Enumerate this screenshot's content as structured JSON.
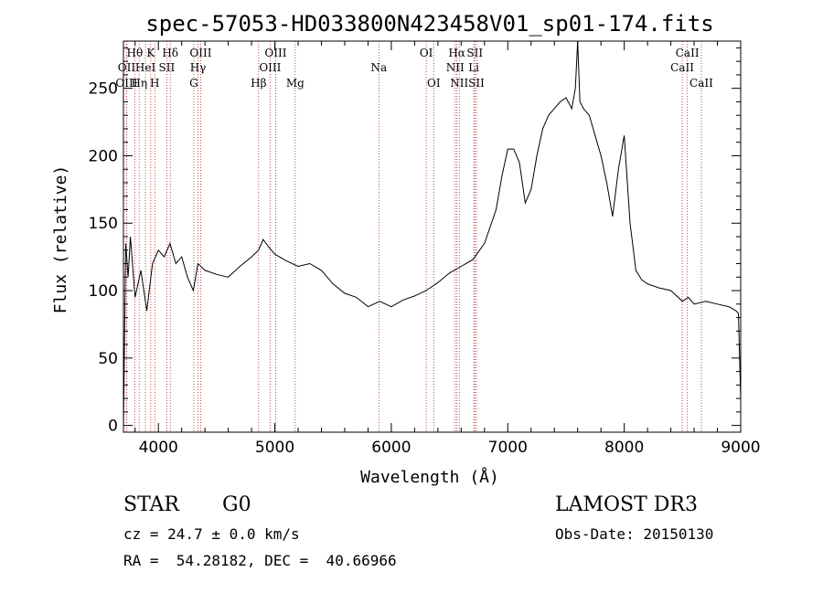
{
  "chart_data": {
    "type": "line",
    "title": "spec-57053-HD033800N423458V01_sp01-174.fits",
    "xlabel": "Wavelength (Å)",
    "ylabel": "Flux (relative)",
    "xlim": [
      3700,
      9000
    ],
    "ylim": [
      -5,
      285
    ],
    "xticks": [
      4000,
      5000,
      6000,
      7000,
      8000,
      9000
    ],
    "yticks": [
      0,
      50,
      100,
      150,
      200,
      250
    ],
    "series": [
      {
        "name": "flux",
        "x": [
          3700,
          3720,
          3740,
          3760,
          3800,
          3850,
          3900,
          3950,
          4000,
          4050,
          4100,
          4150,
          4200,
          4250,
          4300,
          4340,
          4400,
          4500,
          4600,
          4700,
          4800,
          4860,
          4900,
          4950,
          5000,
          5100,
          5200,
          5300,
          5400,
          5500,
          5600,
          5700,
          5800,
          5900,
          6000,
          6100,
          6200,
          6300,
          6400,
          6500,
          6600,
          6700,
          6800,
          6900,
          6950,
          7000,
          7050,
          7100,
          7150,
          7200,
          7250,
          7300,
          7350,
          7400,
          7450,
          7500,
          7550,
          7580,
          7600,
          7620,
          7650,
          7700,
          7750,
          7800,
          7850,
          7900,
          7950,
          8000,
          8050,
          8100,
          8150,
          8200,
          8300,
          8400,
          8500,
          8550,
          8600,
          8700,
          8800,
          8900,
          8960,
          8980,
          9000
        ],
        "values": [
          0,
          135,
          110,
          140,
          95,
          115,
          85,
          120,
          130,
          125,
          135,
          120,
          125,
          110,
          100,
          120,
          115,
          112,
          110,
          118,
          125,
          130,
          138,
          132,
          127,
          122,
          118,
          120,
          115,
          105,
          98,
          95,
          88,
          92,
          88,
          93,
          96,
          100,
          106,
          113,
          118,
          123,
          135,
          160,
          185,
          205,
          205,
          195,
          165,
          175,
          200,
          220,
          230,
          235,
          240,
          243,
          235,
          250,
          285,
          240,
          235,
          230,
          215,
          200,
          180,
          155,
          190,
          215,
          150,
          115,
          108,
          105,
          102,
          100,
          92,
          95,
          90,
          92,
          90,
          88,
          85,
          83,
          20
        ]
      }
    ],
    "line_markers": [
      {
        "label": "Hθ",
        "x": 3797,
        "row": 0
      },
      {
        "label": "OII",
        "x": 3727,
        "row": 1
      },
      {
        "label": "OIII",
        "x": 3727,
        "row": 2
      },
      {
        "label": "Hη",
        "x": 3835,
        "row": 2
      },
      {
        "label": "HeI",
        "x": 3889,
        "row": 1
      },
      {
        "label": "K",
        "x": 3934,
        "row": 0
      },
      {
        "label": "H",
        "x": 3969,
        "row": 2
      },
      {
        "label": "Hδ",
        "x": 4102,
        "row": 0
      },
      {
        "label": "SII",
        "x": 4072,
        "row": 1
      },
      {
        "label": "OIII",
        "x": 4363,
        "row": 0
      },
      {
        "label": "Hγ",
        "x": 4340,
        "row": 1
      },
      {
        "label": "G",
        "x": 4304,
        "row": 2
      },
      {
        "label": "Hβ",
        "x": 4861,
        "row": 2
      },
      {
        "label": "OIII",
        "x": 5007,
        "row": 0
      },
      {
        "label": "OIII",
        "x": 4959,
        "row": 1
      },
      {
        "label": "Mg",
        "x": 5175,
        "row": 2
      },
      {
        "label": "Na",
        "x": 5893,
        "row": 1
      },
      {
        "label": "OI",
        "x": 6300,
        "row": 0
      },
      {
        "label": "OI",
        "x": 6364,
        "row": 2
      },
      {
        "label": "Hα",
        "x": 6563,
        "row": 0
      },
      {
        "label": "NII",
        "x": 6548,
        "row": 1
      },
      {
        "label": "NII",
        "x": 6584,
        "row": 2
      },
      {
        "label": "SII",
        "x": 6717,
        "row": 0
      },
      {
        "label": "Li",
        "x": 6708,
        "row": 1
      },
      {
        "label": "SII",
        "x": 6731,
        "row": 2
      },
      {
        "label": "CaII",
        "x": 8542,
        "row": 0
      },
      {
        "label": "CaII",
        "x": 8498,
        "row": 1
      },
      {
        "label": "CaII",
        "x": 8662,
        "row": 2
      }
    ]
  },
  "info": {
    "class": "STAR",
    "subclass": "G0",
    "survey": "LAMOST DR3",
    "cz_line": "cz = 24.7 ± 0.0 km/s",
    "obs_date_line": "Obs-Date: 20150130",
    "coords_line": "RA =  54.28182, DEC =  40.66966"
  },
  "colors": {
    "line_marker": "#b22222",
    "spectrum": "#000000"
  }
}
